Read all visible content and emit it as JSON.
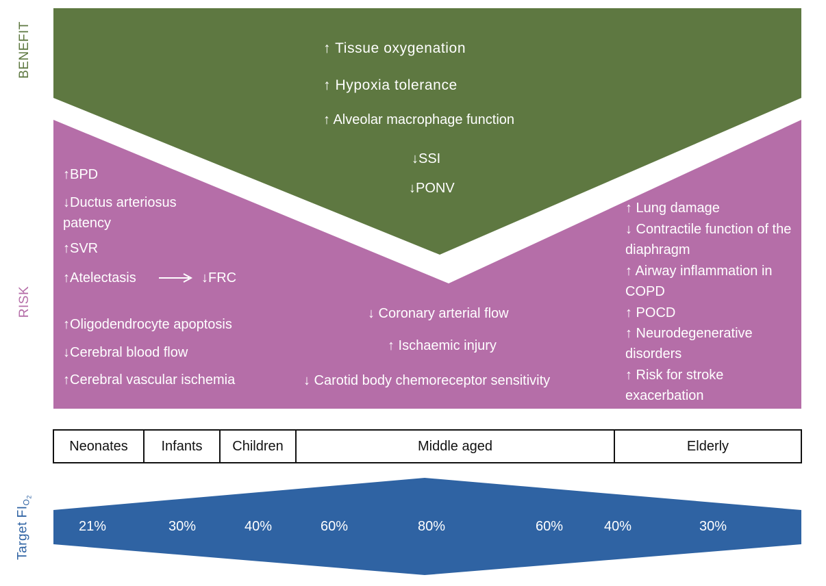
{
  "colors": {
    "benefit": "#5e7841",
    "risk": "#b56ea8",
    "target": "#2f63a3",
    "text_on_color": "#ffffff",
    "benefit_label": "#5e7841",
    "risk_label": "#b56ea8",
    "target_label": "#2f63a3"
  },
  "labels": {
    "benefit": "BENEFIT",
    "risk": "RISK",
    "target_prefix": "Target FI",
    "target_sub": "O2"
  },
  "benefit": {
    "items": [
      "↑ Tissue oxygenation",
      "↑ Hypoxia tolerance",
      "↑ Alveolar macrophage function",
      "↓SSI",
      "↓PONV"
    ]
  },
  "risk": {
    "left": [
      "↑BPD",
      "↓Ductus arteriosus patency",
      "↑SVR",
      "↑Atelectasis",
      "↓FRC",
      "↑Oligodendrocyte apoptosis",
      "↓Cerebral blood flow",
      "↑Cerebral vascular ischemia"
    ],
    "center": [
      "↓ Coronary arterial flow",
      "↑ Ischaemic injury",
      "↓ Carotid body chemoreceptor sensitivity"
    ],
    "right": [
      "↑ Lung damage",
      "↓ Contractile function of the diaphragm",
      "↑ Airway inflammation in COPD",
      "↑ POCD",
      "↑ Neurodegenerative disorders",
      "↑ Risk for stroke exacerbation"
    ]
  },
  "age_groups": [
    "Neonates",
    "Infants",
    "Children",
    "Middle aged",
    "Elderly"
  ],
  "target_fio2": [
    "21%",
    "30%",
    "40%",
    "60%",
    "80%",
    "60%",
    "40%",
    "30%"
  ]
}
